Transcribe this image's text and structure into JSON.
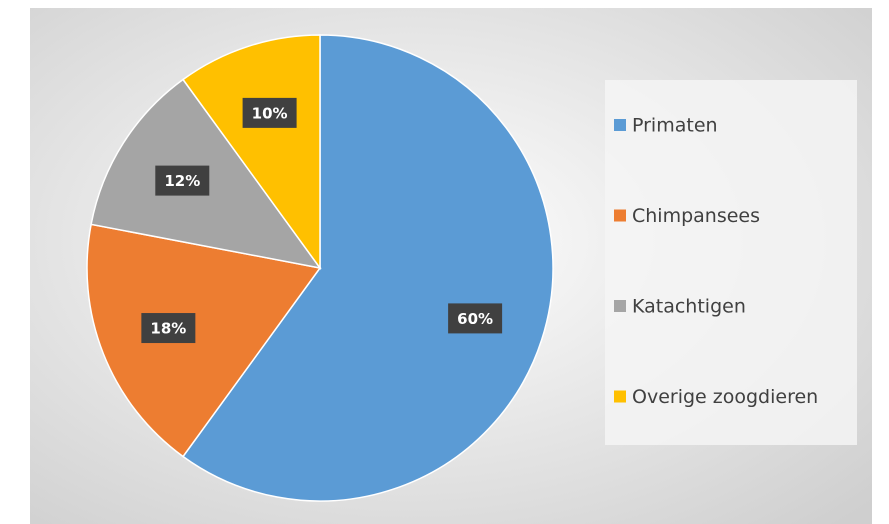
{
  "chart_data": {
    "type": "pie",
    "categories": [
      "Primaten",
      "Chimpansees",
      "Katachtigen",
      "Overige zoogdieren"
    ],
    "values": [
      60,
      18,
      12,
      10
    ],
    "value_labels": [
      "60%",
      "18%",
      "12%",
      "10%"
    ],
    "colors": [
      "#5b9bd5",
      "#ed7d31",
      "#a5a5a5",
      "#ffc000"
    ],
    "legend": "right"
  }
}
